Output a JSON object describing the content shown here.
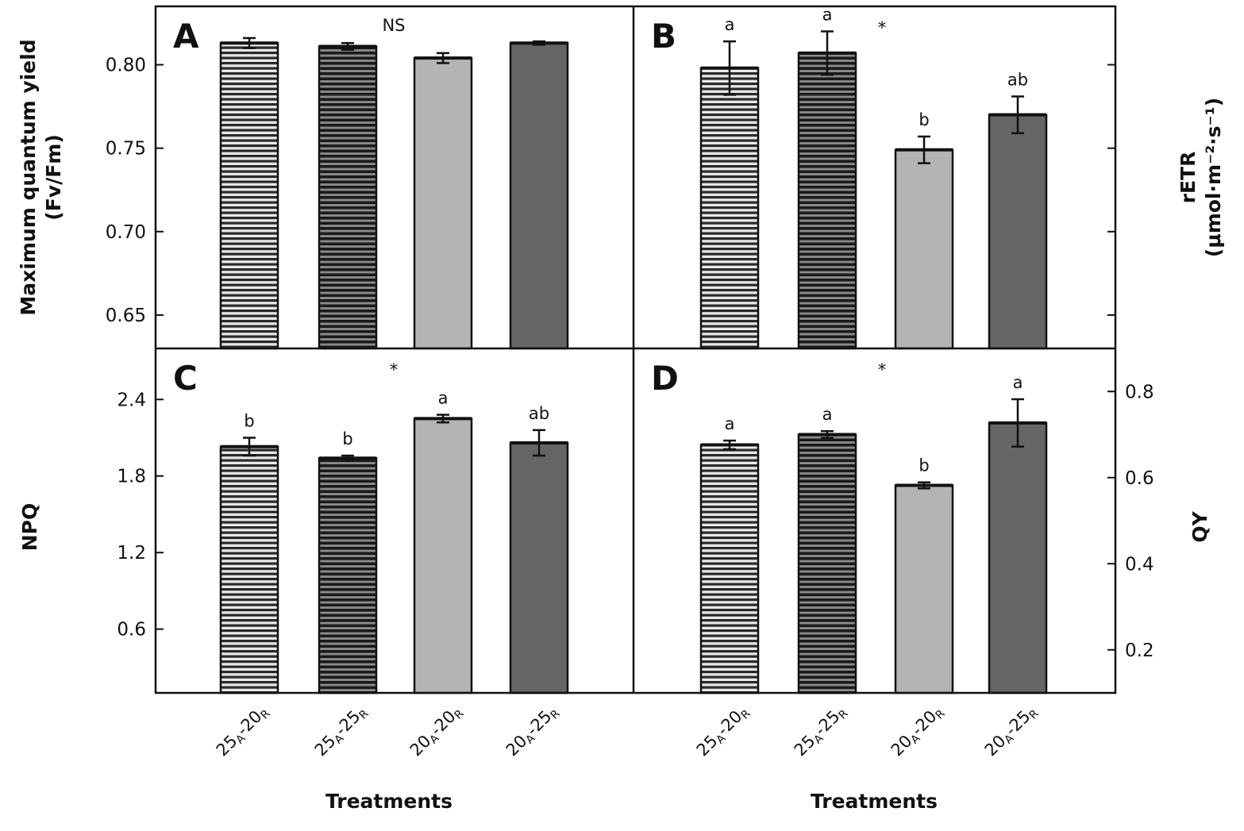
{
  "figure": {
    "x_axis_title": "Treatments",
    "categories": [
      {
        "main": "25",
        "sub1": "A",
        "mid": "-20",
        "sub2": "R"
      },
      {
        "main": "25",
        "sub1": "A",
        "mid": "-25",
        "sub2": "R"
      },
      {
        "main": "20",
        "sub1": "A",
        "mid": "-20",
        "sub2": "R"
      },
      {
        "main": "20",
        "sub1": "A",
        "mid": "-25",
        "sub2": "R"
      }
    ],
    "bar_styles": [
      "stripe-light",
      "stripe-dark",
      "solid-light",
      "solid-dark"
    ],
    "colors": {
      "stripe_light_bg": "#e8e8e8",
      "stripe_light_line": "#2a2a2a",
      "stripe_dark_bg": "#8a8a8a",
      "stripe_dark_line": "#1a1a1a",
      "solid_light": "#b4b4b4",
      "solid_dark": "#656565",
      "axis": "#111111"
    }
  },
  "chart_data": [
    {
      "panel": "A",
      "type": "bar",
      "ylabel_line1": "Maximum quantum yield",
      "ylabel_line2": "(Fv/Fm)",
      "ylabel_side": "left",
      "ylim": [
        0.63,
        0.835
      ],
      "yticks": [
        0.65,
        0.7,
        0.75,
        0.8
      ],
      "ytick_labels": [
        "0.65",
        "0.70",
        "0.75",
        "0.80"
      ],
      "significance": "NS",
      "categories": [
        "25A-20R",
        "25A-25R",
        "20A-20R",
        "20A-25R"
      ],
      "values": [
        0.813,
        0.811,
        0.804,
        0.813
      ],
      "errors": [
        0.003,
        0.002,
        0.003,
        0.001
      ],
      "letters": [
        "",
        "",
        "",
        ""
      ]
    },
    {
      "panel": "B",
      "type": "bar",
      "ylabel_line1": "rETR",
      "ylabel_line2": "(μmol·m⁻²·s⁻¹)",
      "ylabel_side": "right",
      "ylim": [
        0.63,
        0.835
      ],
      "yticks": [
        0.65,
        0.7,
        0.75,
        0.8
      ],
      "ytick_labels": [
        "",
        "",
        "",
        ""
      ],
      "significance": "*",
      "categories": [
        "25A-20R",
        "25A-25R",
        "20A-20R",
        "20A-25R"
      ],
      "values": [
        0.798,
        0.807,
        0.749,
        0.77
      ],
      "errors": [
        0.016,
        0.013,
        0.008,
        0.011
      ],
      "letters": [
        "a",
        "a",
        "b",
        "ab"
      ]
    },
    {
      "panel": "C",
      "type": "bar",
      "ylabel_line1": "NPQ",
      "ylabel_line2": "",
      "ylabel_side": "left",
      "ylim": [
        0.1,
        2.8
      ],
      "yticks": [
        0.6,
        1.2,
        1.8,
        2.4
      ],
      "ytick_labels": [
        "0.6",
        "1.2",
        "1.8",
        "2.4"
      ],
      "significance": "*",
      "categories": [
        "25A-20R",
        "25A-25R",
        "20A-20R",
        "20A-25R"
      ],
      "values": [
        2.03,
        1.94,
        2.25,
        2.06
      ],
      "errors": [
        0.07,
        0.02,
        0.03,
        0.1
      ],
      "letters": [
        "b",
        "b",
        "a",
        "ab"
      ]
    },
    {
      "panel": "D",
      "type": "bar",
      "ylabel_line1": "QY",
      "ylabel_line2": "",
      "ylabel_side": "right",
      "ylim": [
        0.1,
        0.9
      ],
      "yticks": [
        0.2,
        0.4,
        0.6,
        0.8
      ],
      "ytick_labels": [
        "0.2",
        "0.4",
        "0.6",
        "0.8"
      ],
      "significance": "*",
      "categories": [
        "25A-20R",
        "25A-25R",
        "20A-20R",
        "20A-25R"
      ],
      "values": [
        0.676,
        0.7,
        0.582,
        0.727
      ],
      "errors": [
        0.01,
        0.008,
        0.007,
        0.055
      ],
      "letters": [
        "a",
        "a",
        "b",
        "a"
      ]
    }
  ]
}
